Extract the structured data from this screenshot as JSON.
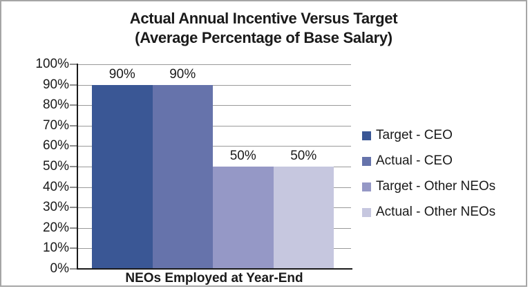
{
  "window": {
    "background": "#FFFFFF",
    "border_color": "#A6A6A6"
  },
  "chart_data": {
    "type": "bar",
    "title_lines": [
      "Actual Annual Incentive Versus Target",
      "(Average Percentage of Base Salary)"
    ],
    "categories": [
      "NEOs Employed at Year-End"
    ],
    "series": [
      {
        "name": "Target - CEO",
        "values": [
          90
        ],
        "value_labels": [
          "90%"
        ],
        "color": "#3A5795"
      },
      {
        "name": "Actual - CEO",
        "values": [
          90
        ],
        "value_labels": [
          "90%"
        ],
        "color": "#6673AB"
      },
      {
        "name": "Target - Other NEOs",
        "values": [
          50
        ],
        "value_labels": [
          "50%"
        ],
        "color": "#9598C6"
      },
      {
        "name": "Actual - Other NEOs",
        "values": [
          50
        ],
        "value_labels": [
          "50%"
        ],
        "color": "#C6C7DF"
      }
    ],
    "xlabel": "",
    "ylabel": "",
    "ylim": [
      0,
      100
    ],
    "ytick_step": 10,
    "ytick_labels": [
      "0%",
      "10%",
      "20%",
      "30%",
      "40%",
      "50%",
      "60%",
      "70%",
      "80%",
      "90%",
      "100%"
    ],
    "grid": true,
    "gridline_color": "#999999",
    "tick_color": "#8C8C8C",
    "axis_color": "#1A1A1A",
    "text_color": "#1A1A1A",
    "legend_position": "right",
    "legend": [
      "Target - CEO",
      "Actual - CEO",
      "Target - Other NEOs",
      "Actual - Other NEOs"
    ]
  }
}
